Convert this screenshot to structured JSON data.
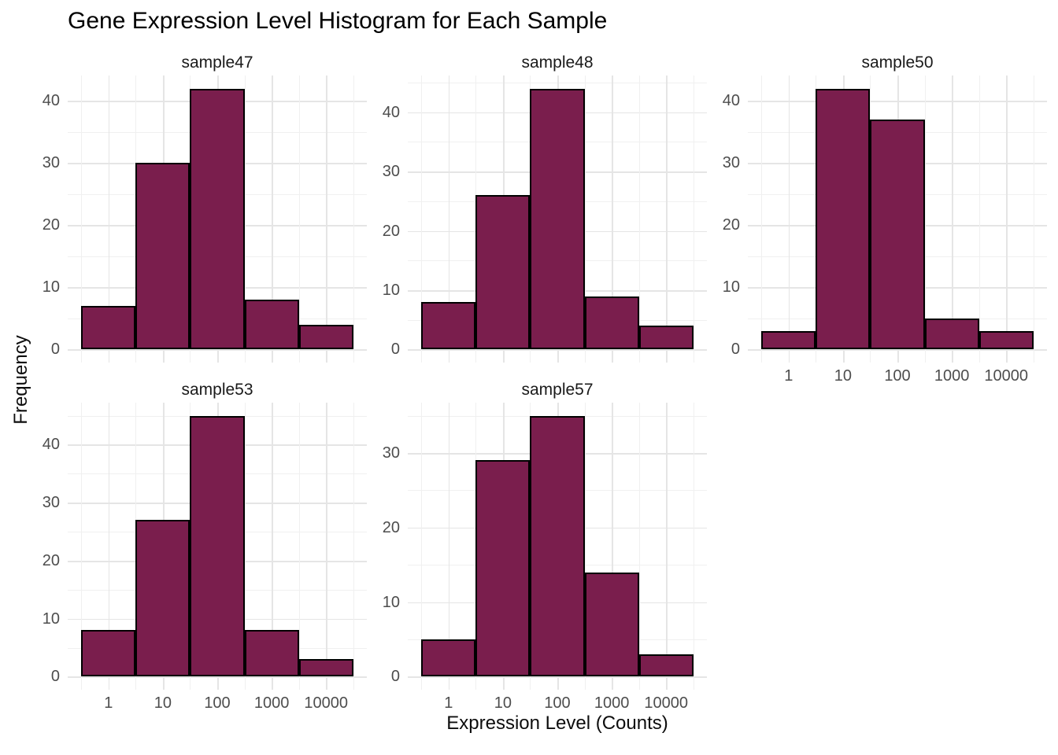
{
  "chart_data": {
    "type": "bar",
    "subtype": "faceted-histogram",
    "title": "Gene Expression Level Histogram for Each Sample",
    "xlabel": "Expression Level (Counts)",
    "ylabel": "Frequency",
    "x_scale": "log10",
    "grid": "on",
    "legend": "none",
    "x_ticks": [
      {
        "label": "1",
        "log": 0
      },
      {
        "label": "10",
        "log": 1
      },
      {
        "label": "100",
        "log": 2
      },
      {
        "label": "1000",
        "log": 3
      },
      {
        "label": "10000",
        "log": 4
      }
    ],
    "x_domain_log10": [
      -0.75,
      4.75
    ],
    "bin_edges_log10": [
      -0.5,
      0.5,
      1.5,
      2.5,
      3.5,
      4.5
    ],
    "colors": {
      "bar_fill": "#7A1E4D",
      "bar_stroke": "#000000",
      "tick_text": "#4d4d4d",
      "grid_major": "#e5e5e5"
    },
    "panels": [
      {
        "title": "sample47",
        "values": [
          7,
          30,
          42,
          8,
          4
        ],
        "y_ticks": [
          0,
          10,
          20,
          30,
          40
        ],
        "show_x_labels": false
      },
      {
        "title": "sample48",
        "values": [
          8,
          26,
          44,
          9,
          4
        ],
        "y_ticks": [
          0,
          10,
          20,
          30,
          40
        ],
        "show_x_labels": false
      },
      {
        "title": "sample50",
        "values": [
          3,
          42,
          37,
          5,
          3
        ],
        "y_ticks": [
          0,
          10,
          20,
          30,
          40
        ],
        "show_x_labels": true
      },
      {
        "title": "sample53",
        "values": [
          8,
          27,
          45,
          8,
          3
        ],
        "y_ticks": [
          0,
          10,
          20,
          30,
          40
        ],
        "show_x_labels": true
      },
      {
        "title": "sample57",
        "values": [
          5,
          29,
          35,
          14,
          3
        ],
        "y_ticks": [
          0,
          10,
          20,
          30
        ],
        "show_x_labels": true
      }
    ]
  }
}
